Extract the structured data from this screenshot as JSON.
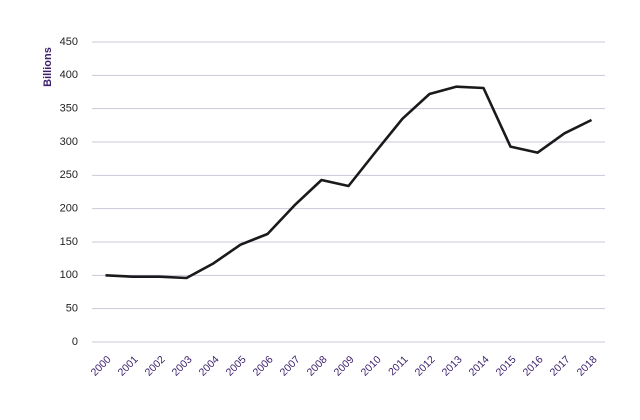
{
  "chart_data": {
    "type": "line",
    "y_label": "Billions",
    "categories": [
      "2000",
      "2001",
      "2002",
      "2003",
      "2004",
      "2005",
      "2006",
      "2007",
      "2008",
      "2009",
      "2010",
      "2011",
      "2012",
      "2013",
      "2014",
      "2015",
      "2016",
      "2017",
      "2018"
    ],
    "series": [
      {
        "color": "#1a1a1a",
        "values": [
          100,
          98,
          98,
          96,
          118,
          146,
          162,
          205,
          243,
          234,
          285,
          335,
          372,
          383,
          381,
          293,
          284,
          313,
          333
        ]
      }
    ],
    "ylim": [
      0,
      450
    ],
    "yticks": [
      0,
      50,
      100,
      150,
      200,
      250,
      300,
      350,
      400,
      450
    ],
    "grid": true
  }
}
